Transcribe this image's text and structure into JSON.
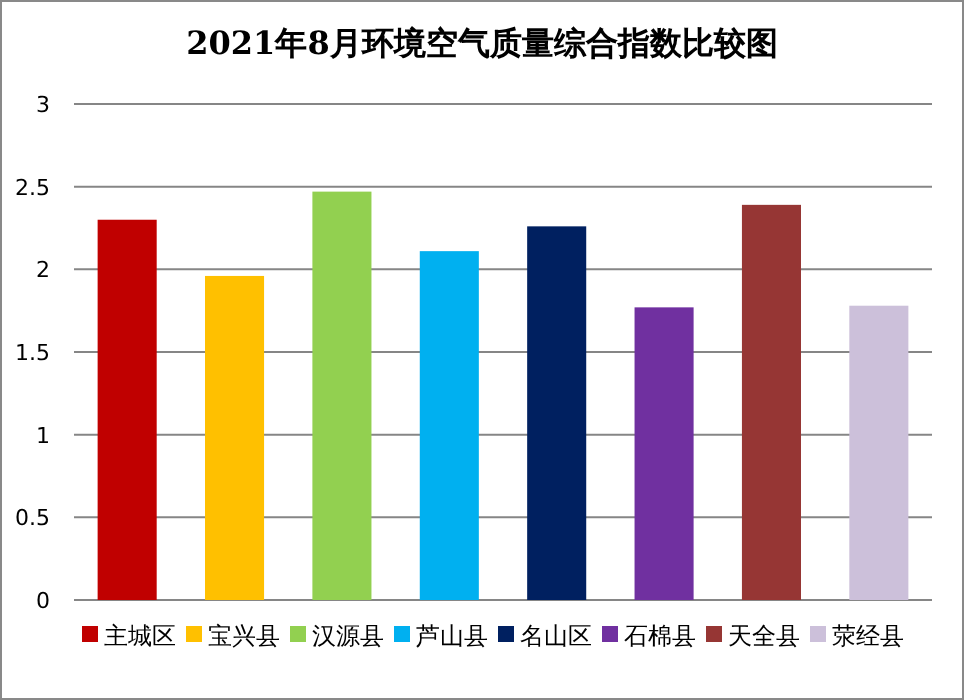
{
  "chart_data": {
    "type": "bar",
    "title": "2021年8月环境空气质量综合指数比较图",
    "categories": [
      null
    ],
    "series": [
      {
        "name": "主城区",
        "color": "#c00000",
        "values": [
          2.3
        ]
      },
      {
        "name": "宝兴县",
        "color": "#ffc000",
        "values": [
          1.96
        ]
      },
      {
        "name": "汉源县",
        "color": "#92d050",
        "values": [
          2.47
        ]
      },
      {
        "name": "芦山县",
        "color": "#00b0f0",
        "values": [
          2.11
        ]
      },
      {
        "name": "名山区",
        "color": "#002060",
        "values": [
          2.26
        ]
      },
      {
        "name": "石棉县",
        "color": "#7030a0",
        "values": [
          1.77
        ]
      },
      {
        "name": "天全县",
        "color": "#963634",
        "values": [
          2.39
        ]
      },
      {
        "name": "荥经县",
        "color": "#ccc0da",
        "values": [
          1.78
        ]
      }
    ],
    "ylim": [
      0,
      3
    ],
    "yticks": [
      0,
      0.5,
      1,
      1.5,
      2,
      2.5,
      3
    ],
    "grid": "y",
    "legend": "bottom"
  }
}
